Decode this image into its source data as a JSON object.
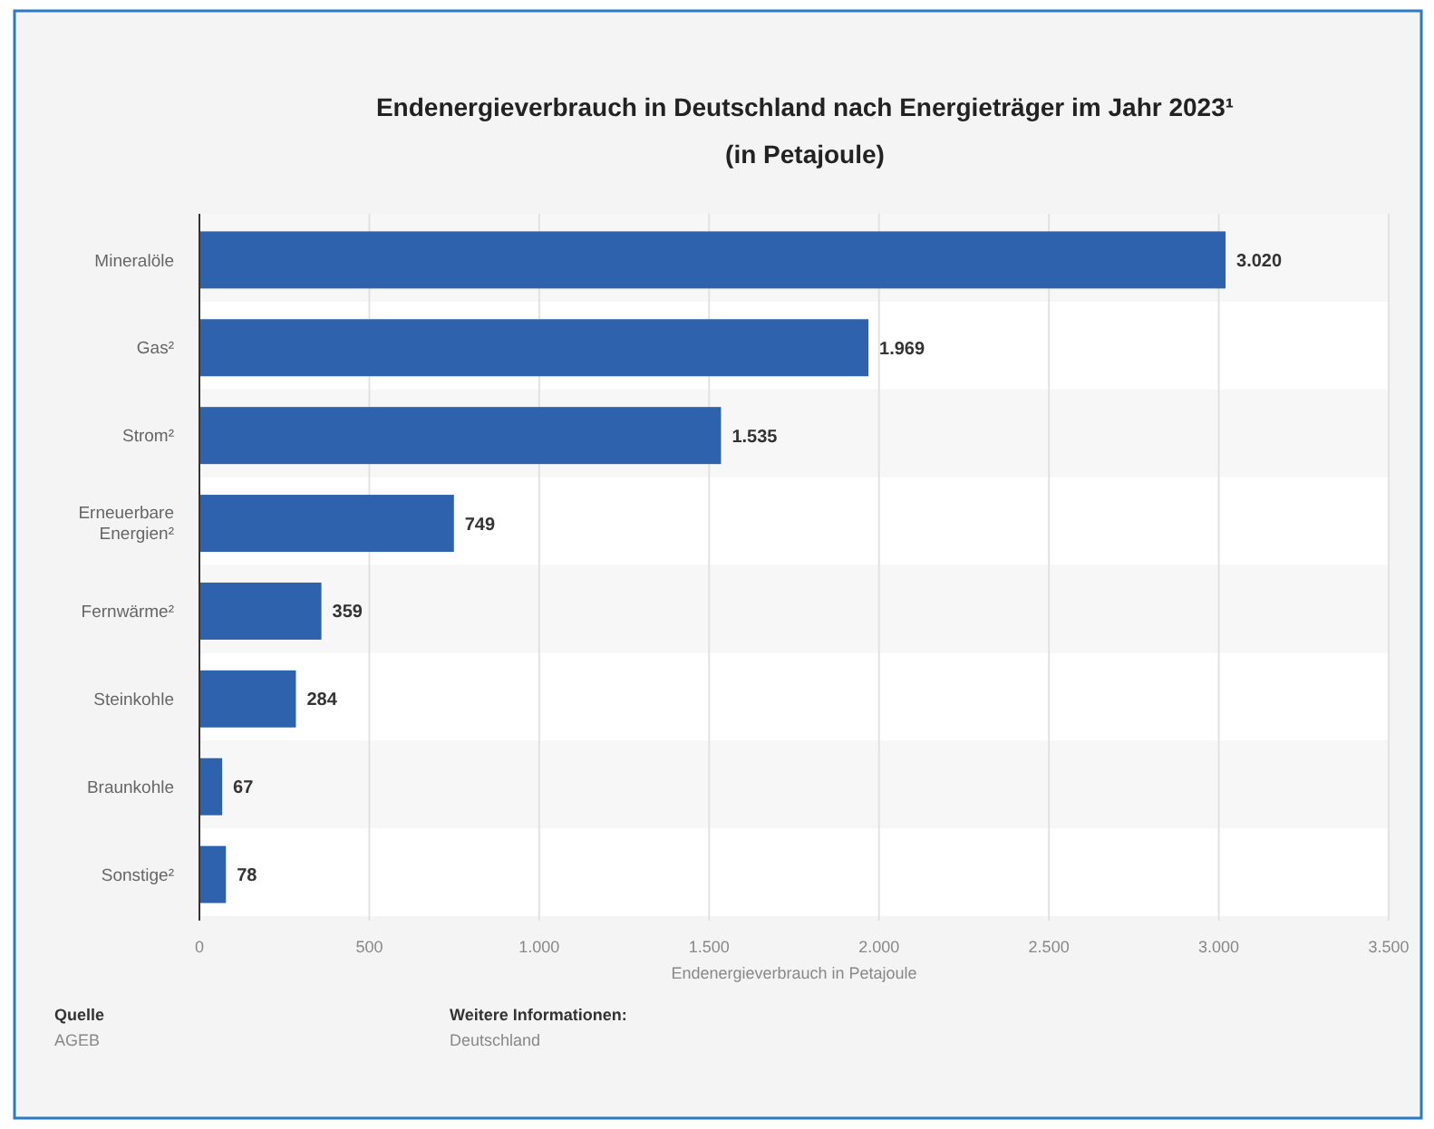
{
  "chart_data": {
    "type": "bar",
    "orientation": "horizontal",
    "title": "Endenergieverbrauch in Deutschland nach Energieträger im Jahr 2023¹",
    "subtitle": "(in Petajoule)",
    "xlabel": "Endenergieverbrauch in Petajoule",
    "categories": [
      "Mineralöle",
      "Gas²",
      "Strom²",
      "Erneuerbare Energien²",
      "Fernwärme²",
      "Steinkohle",
      "Braunkohle",
      "Sonstige²"
    ],
    "values": [
      3020,
      1969,
      1535,
      749,
      359,
      284,
      67,
      78
    ],
    "value_labels": [
      "3.020",
      "1.969",
      "1.535",
      "749",
      "359",
      "284",
      "67",
      "78"
    ],
    "color": "#2e62ac",
    "xlim": [
      0,
      3500
    ],
    "xticks": [
      0,
      500,
      {
        "value": 1000,
        "label": "1.000"
      },
      {
        "value": 1500,
        "label": "1.500"
      },
      {
        "value": 2000,
        "label": "2.000"
      },
      {
        "value": 2500,
        "label": "2.500"
      },
      {
        "value": 3000,
        "label": "3.000"
      },
      {
        "value": 3500,
        "label": "3.500"
      }
    ],
    "grid": "x",
    "annotations": [
      "Quelle",
      "AGEB",
      "Weitere Informationen:",
      "Deutschland"
    ]
  }
}
